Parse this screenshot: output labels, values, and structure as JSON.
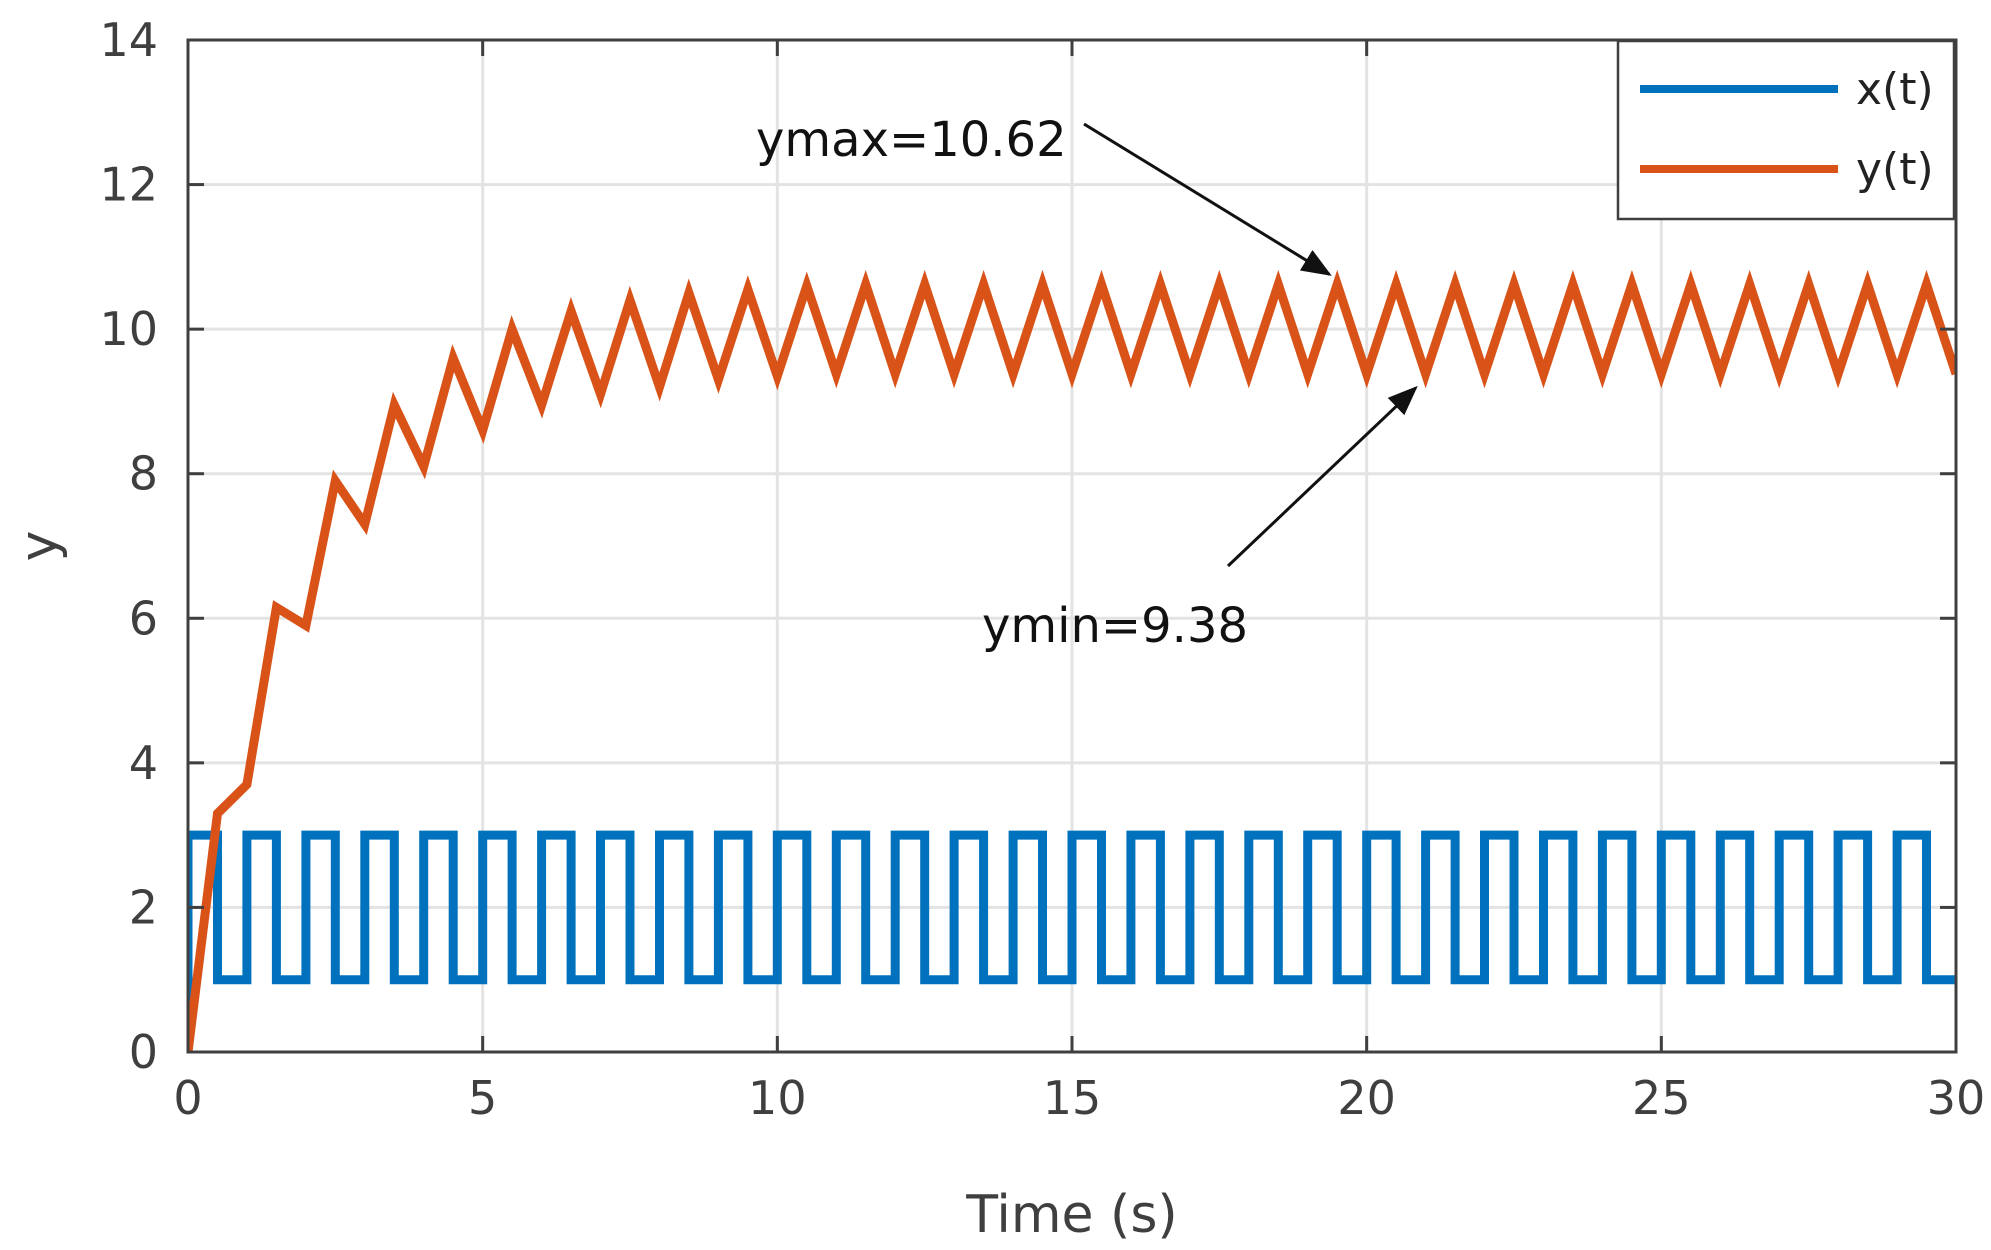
{
  "chart_data": {
    "type": "line",
    "title": "",
    "xlabel": "Time  (s)",
    "ylabel": "y",
    "xlim": [
      0,
      30
    ],
    "ylim": [
      0,
      14
    ],
    "xticks": [
      0,
      5,
      10,
      15,
      20,
      25,
      30
    ],
    "yticks": [
      0,
      2,
      4,
      6,
      8,
      10,
      12,
      14
    ],
    "grid": true,
    "legend_position": "top-right",
    "colors": {
      "x": "#0072BD",
      "y": "#D95319",
      "grid": "#e3e3e3",
      "axis": "#3f3f3f"
    },
    "series": [
      {
        "name": "x(t)",
        "style": "step",
        "period": 1,
        "duty": 0.5,
        "high": 3,
        "low": 1,
        "x": [
          0,
          30
        ]
      },
      {
        "name": "y(t)",
        "style": "line",
        "x": [
          0,
          0.5,
          1,
          1.5,
          2,
          2.5,
          3,
          3.5,
          4,
          4.5,
          5,
          5.5,
          6,
          6.5,
          7,
          7.5,
          8,
          8.5,
          9,
          9.5,
          10,
          10.5,
          11,
          11.5,
          12,
          12.5,
          13,
          13.5,
          14,
          14.5,
          15,
          15.5,
          16,
          16.5,
          17,
          17.5,
          18,
          18.5,
          19,
          19.5,
          20,
          20.5,
          21,
          21.5,
          22,
          22.5,
          23,
          23.5,
          24,
          24.5,
          25,
          25.5,
          26,
          26.5,
          27,
          27.5,
          28,
          28.5,
          29,
          29.5,
          30
        ],
        "values": [
          0,
          3.3,
          3.7,
          6.15,
          5.9,
          7.9,
          7.3,
          8.95,
          8.1,
          9.6,
          8.6,
          10.0,
          8.95,
          10.25,
          9.1,
          10.4,
          9.2,
          10.5,
          9.3,
          10.55,
          9.35,
          10.6,
          9.38,
          10.62,
          9.38,
          10.62,
          9.38,
          10.62,
          9.38,
          10.62,
          9.38,
          10.62,
          9.38,
          10.62,
          9.38,
          10.62,
          9.38,
          10.62,
          9.38,
          10.62,
          9.38,
          10.62,
          9.38,
          10.62,
          9.38,
          10.62,
          9.38,
          10.62,
          9.38,
          10.62,
          9.38,
          10.62,
          9.38,
          10.62,
          9.38,
          10.62,
          9.38,
          10.62,
          9.38,
          10.62,
          9.38
        ]
      }
    ],
    "annotations": [
      {
        "text": "ymax=10.62",
        "target": [
          19.5,
          10.62
        ]
      },
      {
        "text": "ymin=9.38",
        "target": [
          21,
          9.38
        ]
      }
    ]
  }
}
